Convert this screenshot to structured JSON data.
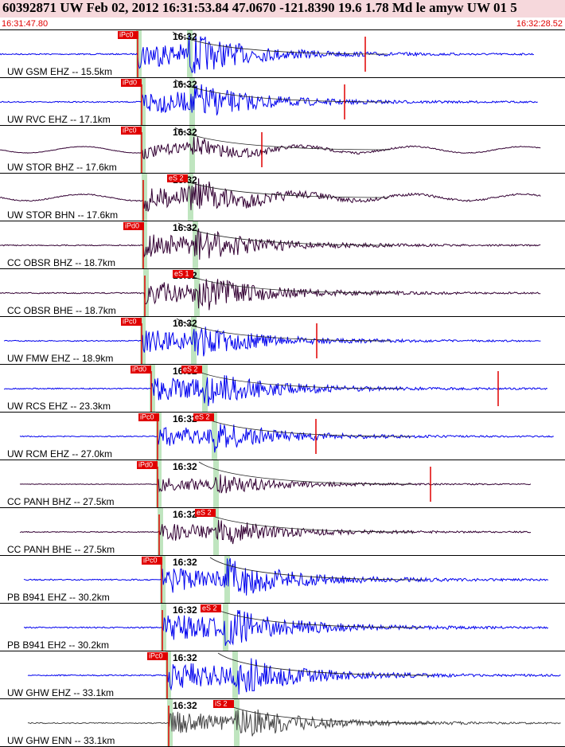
{
  "header": {
    "title": "60392871 UW Feb 02, 2012 16:31:53.84   47.0670 -121.8390 19.6 1.78 Md le amyw UW 01   5",
    "start_time": "16:31:47.80",
    "end_time": "16:32:28.52"
  },
  "time_mark": "16:32",
  "traces": [
    {
      "label": "UW GSM EHZ -- 15.5km",
      "picks": [
        "iPc0"
      ]
    },
    {
      "label": "UW RVC EHZ -- 17.1km",
      "picks": [
        "iPd0"
      ]
    },
    {
      "label": "UW STOR BHZ -- 17.6km",
      "picks": [
        "iPc0"
      ]
    },
    {
      "label": "UW STOR BHN -- 17.6km",
      "picks": [
        "eS 2"
      ]
    },
    {
      "label": "CC OBSR BHZ -- 18.7km",
      "picks": [
        "iPd0"
      ]
    },
    {
      "label": "CC OBSR BHE -- 18.7km",
      "picks": [
        "eS 1"
      ]
    },
    {
      "label": "UW FMW EHZ -- 18.9km",
      "picks": [
        "iPc0"
      ]
    },
    {
      "label": "UW RCS EHZ -- 23.3km",
      "picks": [
        "iPd0",
        "eS 2"
      ]
    },
    {
      "label": "UW RCM EHZ -- 27.0km",
      "picks": [
        "iPc0",
        "eS 2"
      ]
    },
    {
      "label": "CC PANH BHZ -- 27.5km",
      "picks": [
        "iPd0"
      ]
    },
    {
      "label": "CC PANH BHE -- 27.5km",
      "picks": [
        "eS 2"
      ]
    },
    {
      "label": "PB B941 EHZ -- 30.2km",
      "picks": [
        "iPc0"
      ]
    },
    {
      "label": "PB B941 EH2 -- 30.2km",
      "picks": [
        "eS 2"
      ]
    },
    {
      "label": "UW GHW EHZ -- 33.1km",
      "picks": [
        "iPc0"
      ]
    },
    {
      "label": "UW GHW ENN -- 33.1km",
      "picks": [
        "iS 2"
      ]
    }
  ]
}
